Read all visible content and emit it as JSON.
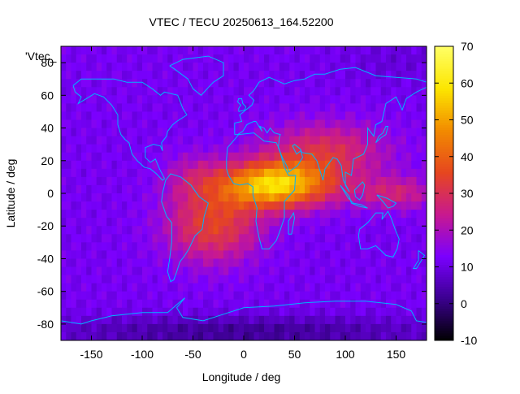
{
  "chart_data": {
    "type": "heatmap",
    "title": "VTEC / TECU 20250613_164.52200",
    "xlabel": "Longitude / deg",
    "ylabel": "Latitude / deg",
    "xlim": [
      -180,
      180
    ],
    "ylim": [
      -90,
      90
    ],
    "x_ticks": [
      -150,
      -100,
      -50,
      0,
      50,
      100,
      150
    ],
    "y_ticks": [
      -80,
      -60,
      -40,
      -20,
      0,
      20,
      40,
      60,
      80
    ],
    "colorbar": {
      "min": -10,
      "max": 70,
      "ticks": [
        -10,
        0,
        10,
        20,
        30,
        40,
        50,
        60,
        70
      ],
      "palette": [
        "#000000",
        "#3b008f",
        "#7a00ff",
        "#c8198f",
        "#e6461f",
        "#f28b00",
        "#fce600",
        "#ffff66"
      ]
    },
    "legend_label": "'Vtec_",
    "overlay": "coastlines",
    "coastline_color": "#00b4ff",
    "description_of_values": {
      "background_level": 12,
      "equatorial_peak": 62,
      "peak_longitude": 30,
      "peak_latitude": 5
    }
  }
}
